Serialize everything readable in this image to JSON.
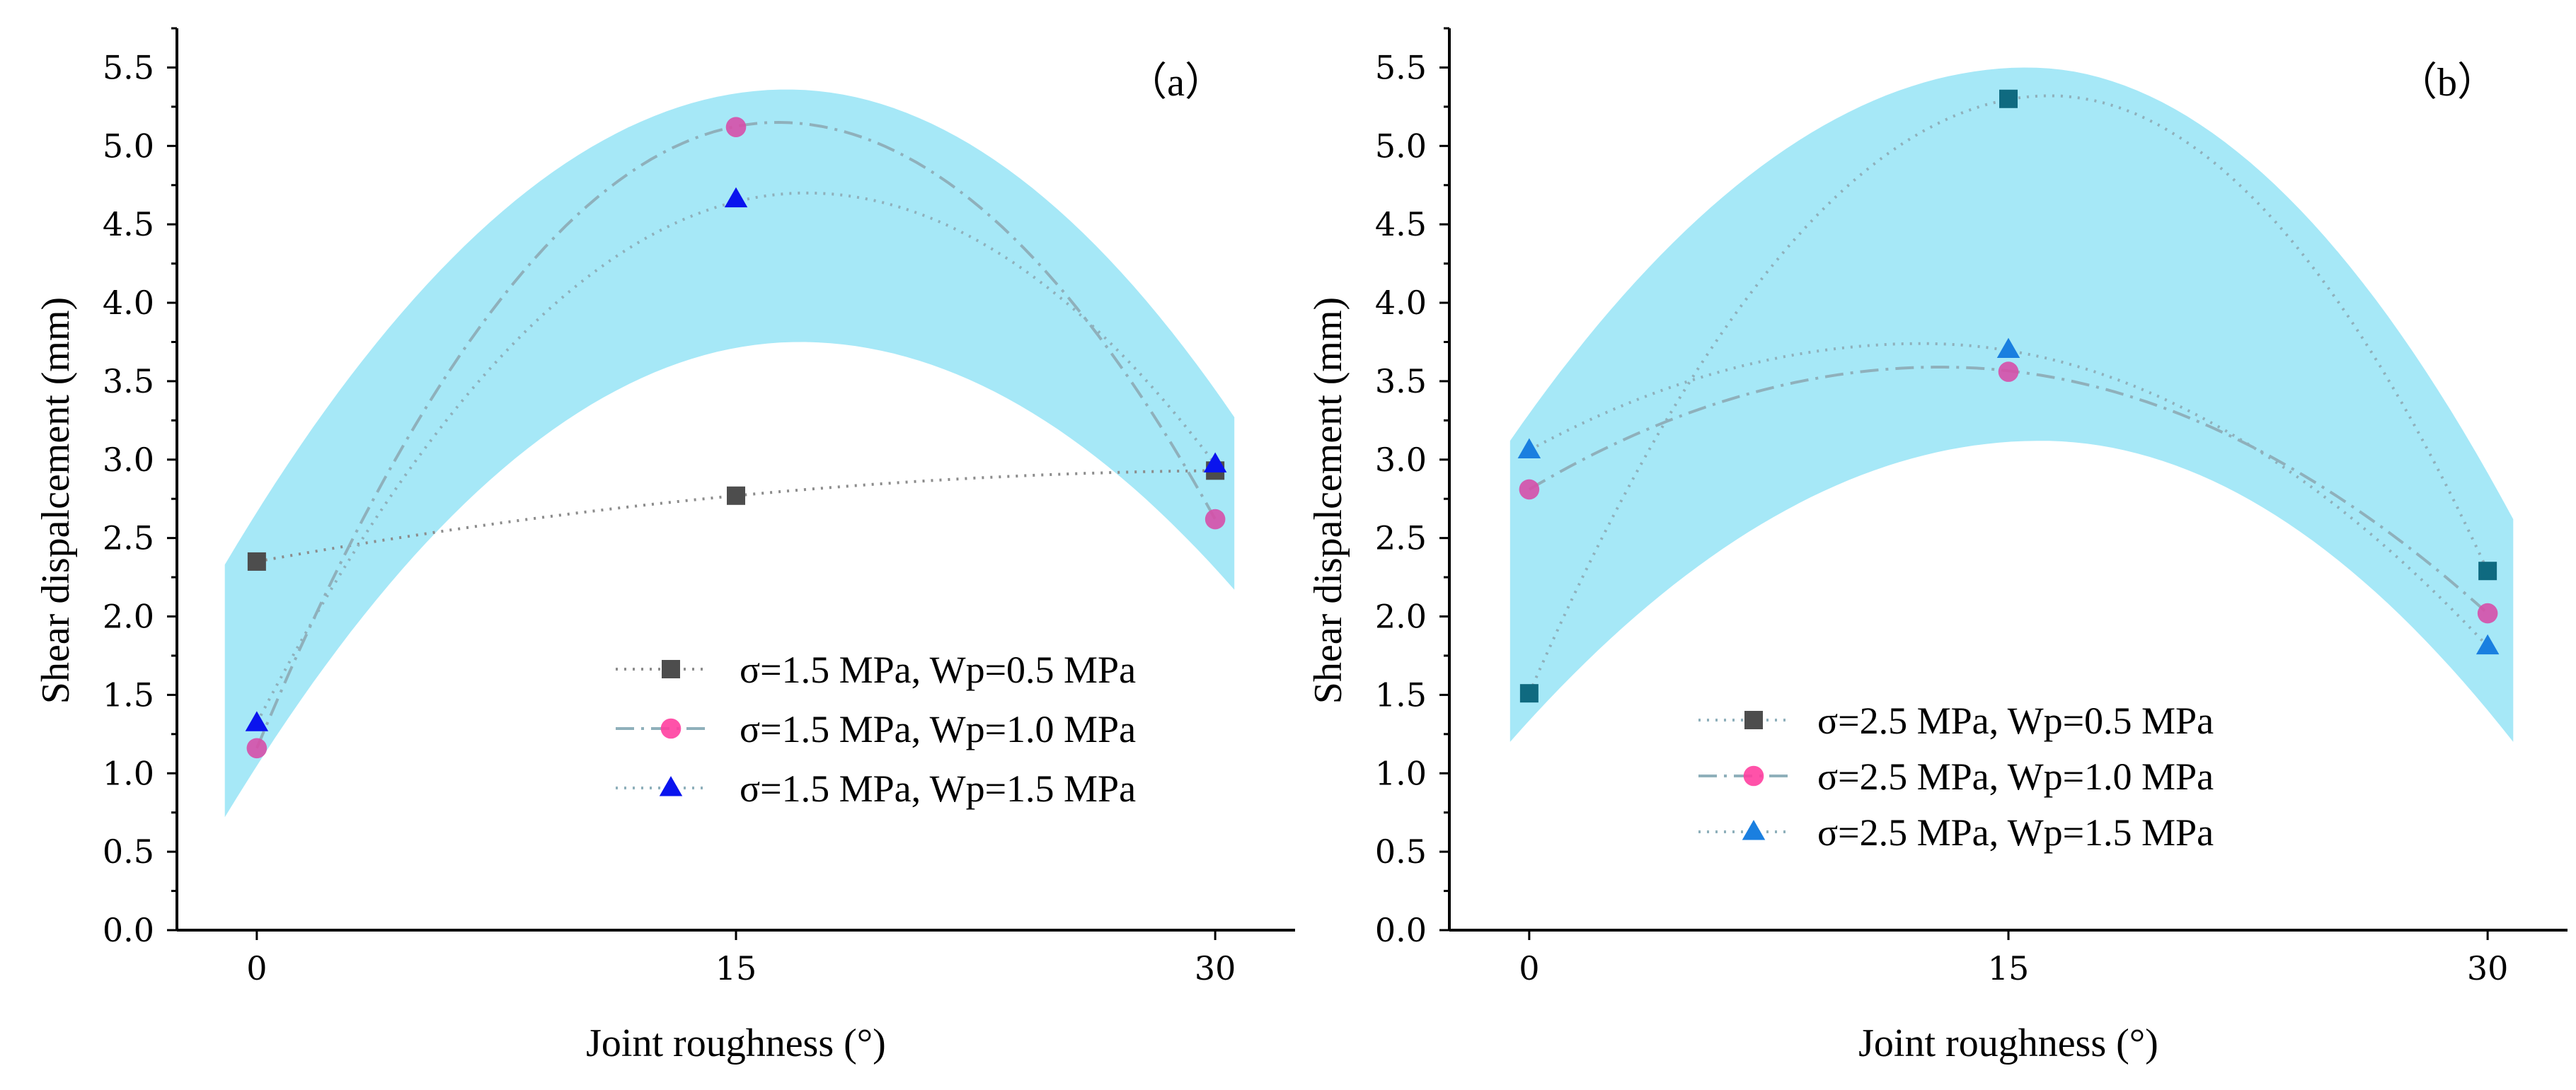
{
  "chart_data": [
    {
      "type": "line",
      "panel_label": "（a）",
      "xlabel": "Joint roughness (°)",
      "ylabel": "Shear dispalcement (mm)",
      "x_ticks": [
        0,
        15,
        30
      ],
      "x_tick_labels": [
        "0",
        "15",
        "30"
      ],
      "y_ticks": [
        0,
        0.5,
        1,
        1.5,
        2,
        2.5,
        3,
        3.5,
        4,
        4.5,
        5,
        5.5
      ],
      "y_tick_labels": [
        "0.0",
        "0.5",
        "1.0",
        "1.5",
        "2.0",
        "2.5",
        "3.0",
        "3.5",
        "4.0",
        "4.5",
        "5.0",
        "5.5"
      ],
      "xlim": [
        -2.5,
        32.5
      ],
      "ylim": [
        0,
        5.75
      ],
      "grid": false,
      "legend_position": "lower-right",
      "band": {
        "color": "#a6e8f7",
        "x_range": [
          -1,
          30.6
        ],
        "upper": {
          "peak_x": 16.6,
          "peak_y": 5.36,
          "end_left_y": 2.33,
          "end_right_y": 3.27
        },
        "lower": {
          "peak_x": 17,
          "peak_y": 3.75,
          "end_left_y": 0.72,
          "end_right_y": 2.17
        }
      },
      "series": [
        {
          "name": "σ=1.5 MPa, Wp=0.5 MPa",
          "x": [
            0,
            15,
            30
          ],
          "y": [
            2.35,
            2.77,
            2.93
          ],
          "marker": "square",
          "marker_color": "#4d4d4d",
          "legend_marker_color": "#4d4d4d",
          "line_style": "dotted",
          "line_color": "#8c8c8c",
          "fit_peak_x": 36,
          "fit_peak_y": 2.95
        },
        {
          "name": "σ=1.5 MPa, Wp=1.0 MPa",
          "x": [
            0,
            15,
            30
          ],
          "y": [
            1.16,
            5.12,
            2.62
          ],
          "marker": "circle",
          "marker_color": "#d64fa8",
          "legend_marker_color": "#ff3fa0",
          "line_style": "dashdot",
          "line_color": "#8fb0bb",
          "fit_peak_x": 16.3,
          "fit_peak_y": 5.15
        },
        {
          "name": "σ=1.5 MPa, Wp=1.5 MPa",
          "x": [
            0,
            15,
            30
          ],
          "y": [
            1.32,
            4.66,
            2.97
          ],
          "marker": "triangle",
          "marker_color": "#0a14ee",
          "legend_marker_color": "#0a14ee",
          "line_style": "dotted",
          "line_color": "#8fb0bb",
          "fit_peak_x": 17.2,
          "fit_peak_y": 4.7
        }
      ]
    },
    {
      "type": "line",
      "panel_label": "（b）",
      "xlabel": "Joint roughness (°)",
      "ylabel": "Shear dispalcement (mm)",
      "x_ticks": [
        0,
        15,
        30
      ],
      "x_tick_labels": [
        "0",
        "15",
        "30"
      ],
      "y_ticks": [
        0,
        0.5,
        1,
        1.5,
        2,
        2.5,
        3,
        3.5,
        4,
        4.5,
        5,
        5.5
      ],
      "y_tick_labels": [
        "0.0",
        "0.5",
        "1.0",
        "1.5",
        "2.0",
        "2.5",
        "3.0",
        "3.5",
        "4.0",
        "4.5",
        "5.0",
        "5.5"
      ],
      "xlim": [
        -2.5,
        32.5
      ],
      "ylim": [
        0,
        5.75
      ],
      "grid": false,
      "legend_position": "lower-center",
      "band": {
        "color": "#a6e8f7",
        "x_range": [
          -0.6,
          30.8
        ],
        "upper": {
          "peak_x": 15.6,
          "peak_y": 5.5,
          "end_left_y": 3.12,
          "end_right_y": 2.62
        },
        "lower": {
          "peak_x": 16,
          "peak_y": 3.12,
          "end_left_y": 1.2,
          "end_right_y": 1.2
        }
      },
      "series": [
        {
          "name": "σ=2.5 MPa, Wp=0.5 MPa",
          "x": [
            0,
            15,
            30
          ],
          "y": [
            1.51,
            5.3,
            2.29
          ],
          "marker": "square",
          "marker_color": "#0f6a80",
          "legend_marker_color": "#4d4d4d",
          "line_style": "dotted",
          "line_color": "#8fb0bb",
          "fit_peak_x": 16.3,
          "fit_peak_y": 5.32
        },
        {
          "name": "σ=2.5 MPa, Wp=1.0 MPa",
          "x": [
            0,
            15,
            30
          ],
          "y": [
            2.81,
            3.56,
            2.02
          ],
          "marker": "circle",
          "marker_color": "#d64fa8",
          "legend_marker_color": "#ff3fa0",
          "line_style": "dashdot",
          "line_color": "#8fb0bb",
          "fit_peak_x": 12.9,
          "fit_peak_y": 3.59
        },
        {
          "name": "σ=2.5 MPa, Wp=1.5 MPa",
          "x": [
            0,
            15,
            30
          ],
          "y": [
            3.06,
            3.7,
            1.81
          ],
          "marker": "triangle",
          "marker_color": "#1a7fe0",
          "legend_marker_color": "#1a7fe0",
          "line_style": "dotted",
          "line_color": "#8fb0bb",
          "fit_peak_x": 12.3,
          "fit_peak_y": 3.74
        }
      ]
    }
  ]
}
